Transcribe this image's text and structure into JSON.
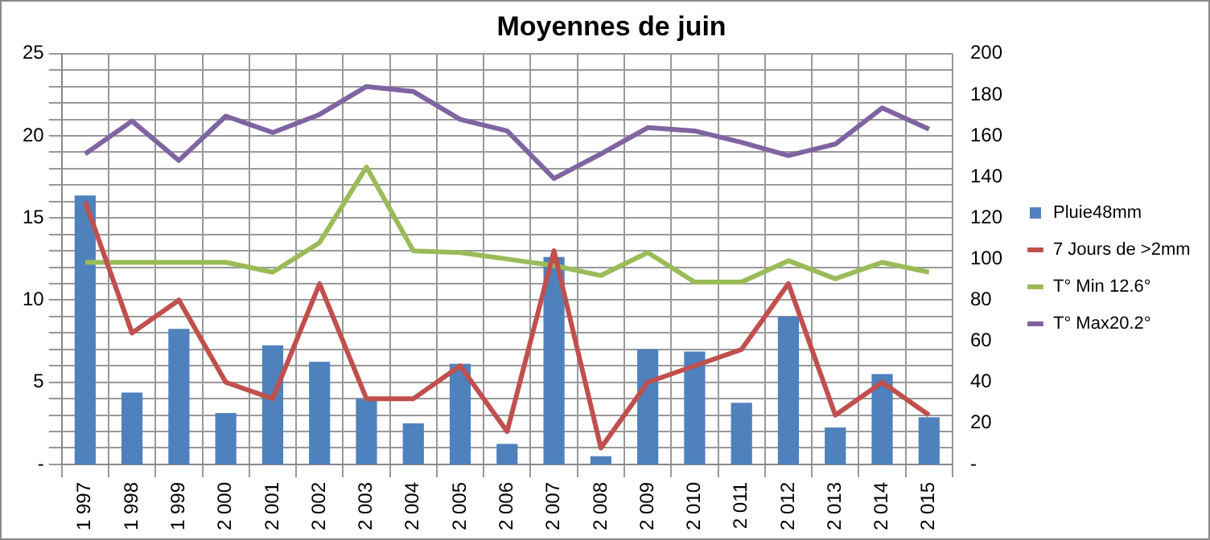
{
  "chart_data": {
    "type": "bar",
    "title": "Moyennes de juin",
    "categories": [
      "1 997",
      "1 998",
      "1 999",
      "2 000",
      "2 001",
      "2 002",
      "2 003",
      "2 004",
      "2 005",
      "2 006",
      "2 007",
      "2 008",
      "2 009",
      "2 010",
      "2 011",
      "2 012",
      "2 013",
      "2 014",
      "2 015"
    ],
    "series": [
      {
        "name": "Pluie48mm",
        "axis": "y2",
        "color": "#4f81bd",
        "values": [
          131,
          35,
          66,
          25,
          58,
          50,
          32,
          20,
          49,
          10,
          101,
          4,
          56,
          55,
          30,
          72,
          18,
          44,
          23
        ]
      },
      {
        "name": "7 Jours de >2mm",
        "type": "line",
        "color": "#c0504d",
        "values": [
          16,
          8,
          10,
          5,
          4,
          11,
          4,
          4,
          6,
          2,
          13,
          1,
          5,
          6,
          7,
          11,
          3,
          5,
          3
        ]
      },
      {
        "name": "T° Min 12.6°",
        "type": "line",
        "color": "#9bbb59",
        "values": [
          12.3,
          12.3,
          12.3,
          12.3,
          11.7,
          13.5,
          18.1,
          13.0,
          12.9,
          12.5,
          12.1,
          11.5,
          12.9,
          11.1,
          11.1,
          12.4,
          11.3,
          12.3,
          11.7
        ]
      },
      {
        "name": "T° Max20.2°",
        "type": "line",
        "color": "#8064a2",
        "values": [
          18.9,
          20.9,
          18.5,
          21.2,
          20.2,
          21.3,
          23.0,
          22.7,
          21.0,
          20.3,
          17.4,
          18.9,
          20.5,
          20.3,
          19.6,
          18.8,
          19.5,
          21.7,
          20.4
        ]
      }
    ],
    "ylim": [
      0,
      25
    ],
    "yticks": [
      {
        "value": 0,
        "label": "-"
      },
      {
        "value": 1,
        "label": null
      },
      {
        "value": 2,
        "label": null
      },
      {
        "value": 3,
        "label": null
      },
      {
        "value": 4,
        "label": null
      },
      5,
      {
        "value": 6,
        "label": null
      },
      {
        "value": 7,
        "label": null
      },
      {
        "value": 8,
        "label": null
      },
      {
        "value": 9,
        "label": null
      },
      10,
      {
        "value": 11,
        "label": null
      },
      {
        "value": 12,
        "label": null
      },
      {
        "value": 13,
        "label": null
      },
      {
        "value": 14,
        "label": null
      },
      15,
      {
        "value": 16,
        "label": null
      },
      {
        "value": 17,
        "label": null
      },
      {
        "value": 18,
        "label": null
      },
      {
        "value": 19,
        "label": null
      },
      20,
      {
        "value": 21,
        "label": null
      },
      {
        "value": 22,
        "label": null
      },
      {
        "value": 23,
        "label": null
      },
      {
        "value": 24,
        "label": null
      },
      25
    ],
    "y2lim": [
      0,
      200
    ],
    "y2ticks": [
      {
        "value": 0,
        "label": "-"
      },
      20,
      40,
      60,
      80,
      100,
      120,
      140,
      160,
      180,
      200
    ],
    "grid": true,
    "legend": "right",
    "marker": "none",
    "line_style": "solid"
  }
}
